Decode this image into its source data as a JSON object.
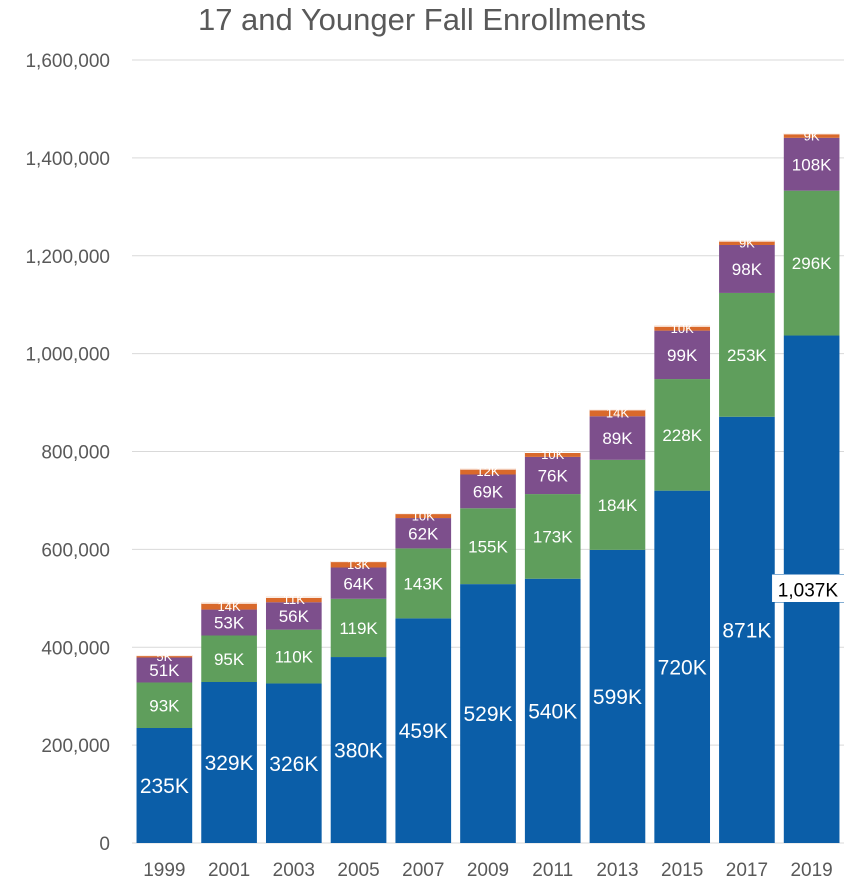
{
  "chart_data": {
    "type": "bar",
    "stacked": true,
    "title": "17 and Younger Fall Enrollments",
    "xlabel": "",
    "ylabel": "",
    "ylim": [
      0,
      1600000
    ],
    "yticks": [
      0,
      200000,
      400000,
      600000,
      800000,
      1000000,
      1200000,
      1400000,
      1600000
    ],
    "ytick_labels": [
      "0",
      "200,000",
      "400,000",
      "600,000",
      "800,000",
      "1,000,000",
      "1,200,000",
      "1,400,000",
      "1,600,000"
    ],
    "grid": true,
    "legend": "none",
    "categories": [
      "1999",
      "2001",
      "2003",
      "2005",
      "2007",
      "2009",
      "2011",
      "2013",
      "2015",
      "2017",
      "2019"
    ],
    "series": [
      {
        "color": "#0b5ea8",
        "values": [
          235000,
          329000,
          326000,
          380000,
          459000,
          529000,
          540000,
          599000,
          720000,
          871000,
          1037000
        ],
        "labels": [
          "235K",
          "329K",
          "326K",
          "380K",
          "459K",
          "529K",
          "540K",
          "599K",
          "720K",
          "871K",
          "1,037K"
        ]
      },
      {
        "color": "#5f9e5c",
        "values": [
          93000,
          95000,
          110000,
          119000,
          143000,
          155000,
          173000,
          184000,
          228000,
          253000,
          296000
        ],
        "labels": [
          "93K",
          "95K",
          "110K",
          "119K",
          "143K",
          "155K",
          "173K",
          "184K",
          "228K",
          "253K",
          "296K"
        ]
      },
      {
        "color": "#7d4f8c",
        "values": [
          51000,
          53000,
          56000,
          64000,
          62000,
          69000,
          76000,
          89000,
          99000,
          98000,
          108000
        ],
        "labels": [
          "51K",
          "53K",
          "56K",
          "64K",
          "62K",
          "69K",
          "76K",
          "89K",
          "99K",
          "98K",
          "108K"
        ]
      },
      {
        "color": "#d9692b",
        "values": [
          5000,
          14000,
          11000,
          13000,
          10000,
          12000,
          10000,
          14000,
          10000,
          9000,
          9000
        ],
        "labels": [
          "5K",
          "14K",
          "11K",
          "13K",
          "10K",
          "12K",
          "10K",
          "14K",
          "10K",
          "9K",
          "9K"
        ]
      }
    ]
  }
}
